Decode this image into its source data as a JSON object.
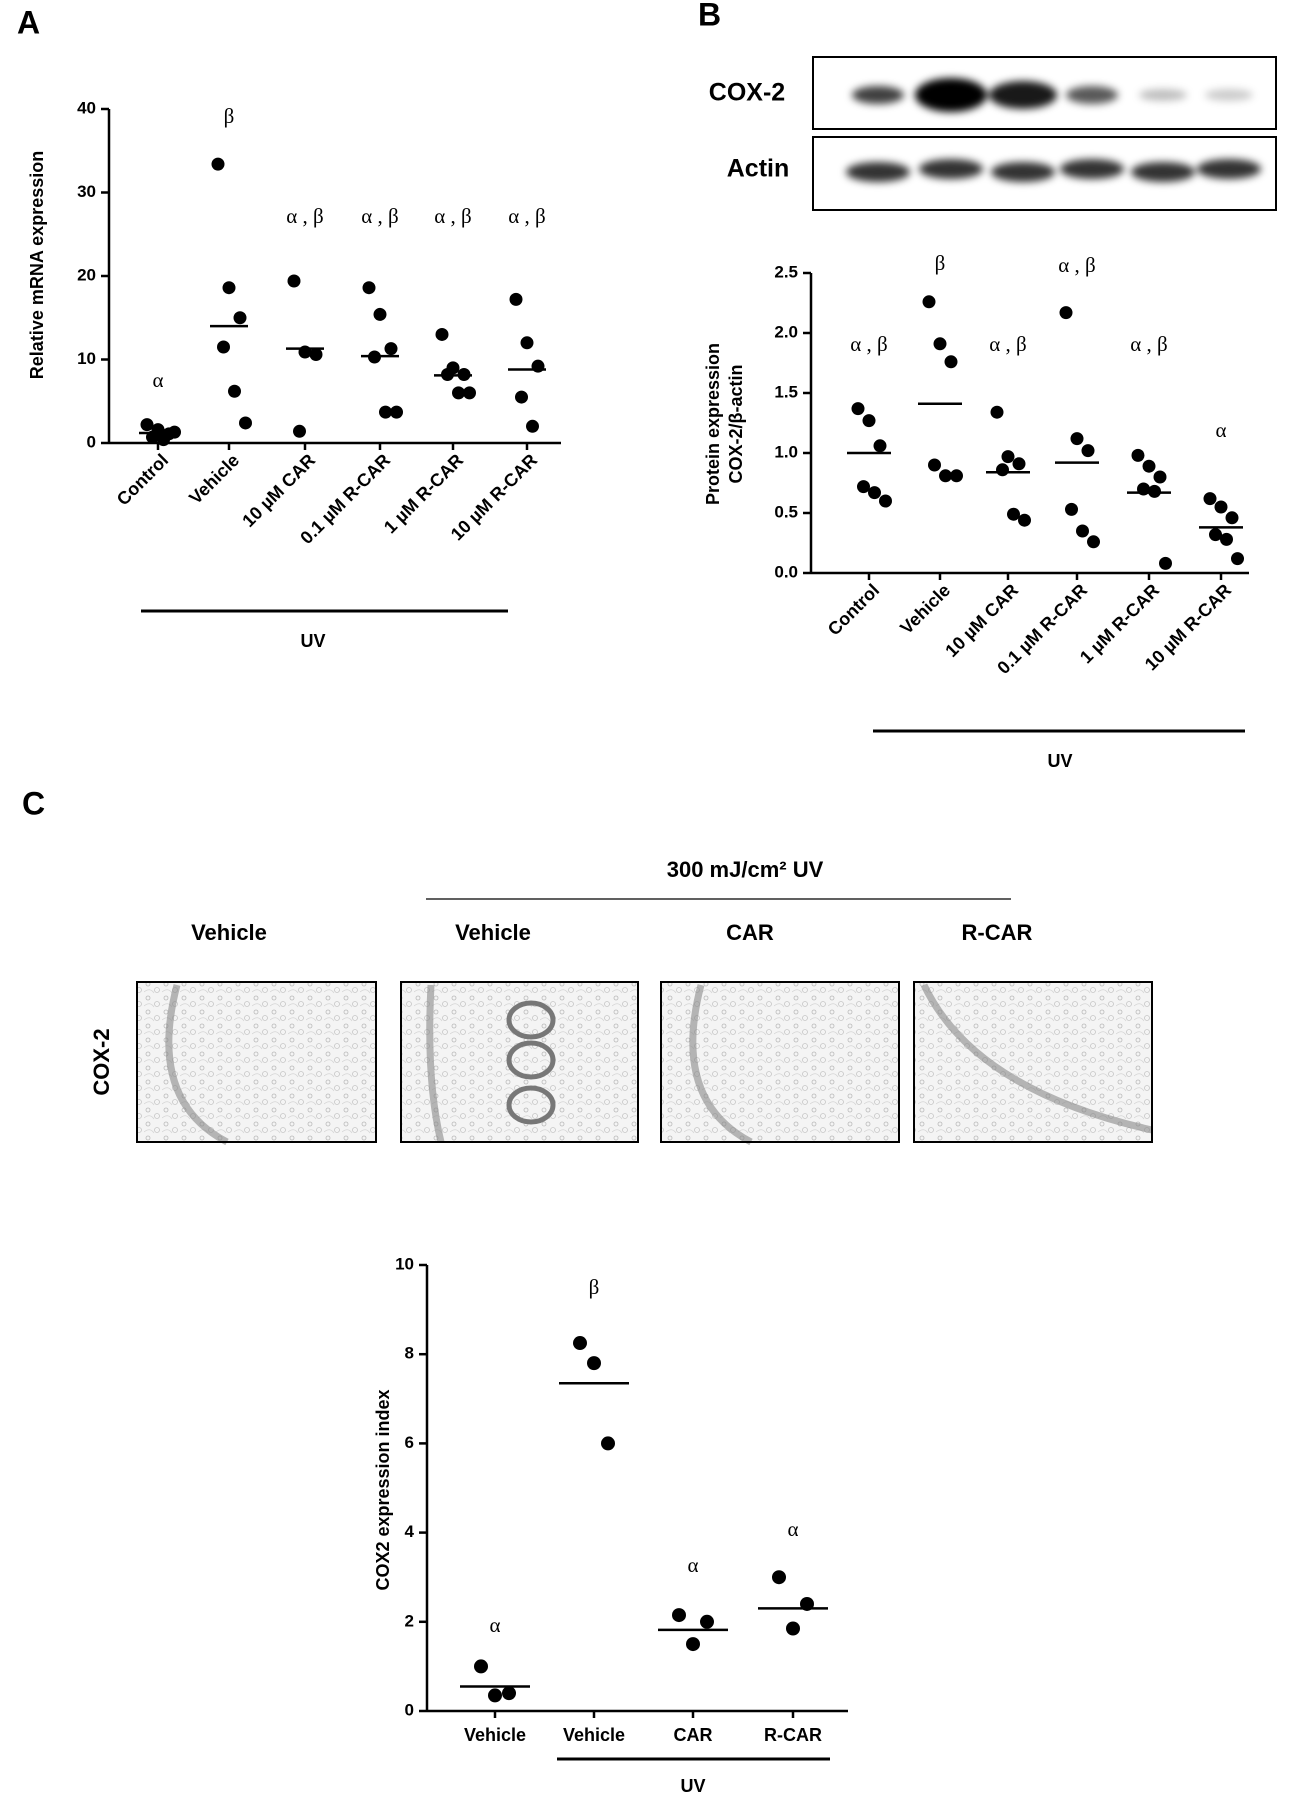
{
  "panels": {
    "a_label": "A",
    "b_label": "B",
    "c_label": "C"
  },
  "blot": {
    "rows": [
      "COX-2",
      "Actin"
    ]
  },
  "histology": {
    "header": "300 mJ/cm² UV",
    "columns": [
      "Vehicle",
      "Vehicle",
      "CAR",
      "R-CAR"
    ],
    "row_label": "COX-2"
  },
  "chart_data": [
    {
      "type": "dot",
      "ylabel": [
        "Relative mRNA expression"
      ],
      "categories": [
        "Control",
        "Vehicle",
        "10 µM CAR",
        "0.1 µM R-CAR",
        "1 µM R-CAR",
        "10 µM R-CAR"
      ],
      "points": [
        [
          2.2,
          1.6,
          1.1,
          0.7,
          0.4,
          1.3
        ],
        [
          33.4,
          18.6,
          15.0,
          11.5,
          6.2,
          2.4
        ],
        [
          19.4,
          10.9,
          10.6,
          1.4
        ],
        [
          18.6,
          15.4,
          11.3,
          10.3,
          3.7,
          3.7
        ],
        [
          13.0,
          9.0,
          8.2,
          8.2,
          6.0,
          6.0
        ],
        [
          17.2,
          12.0,
          9.2,
          5.5,
          2.0
        ]
      ],
      "means": [
        1.2,
        14.0,
        11.3,
        10.4,
        8.1,
        8.8
      ],
      "annotations": [
        "α",
        "β",
        "α , β",
        "α , β",
        "α , β",
        "α , β"
      ],
      "group_label": "UV",
      "color": "#000000",
      "ylim": [
        0,
        40
      ],
      "yticks": [
        0,
        10,
        20,
        30,
        40
      ]
    },
    {
      "type": "dot",
      "ylabel": [
        "Protein expression",
        "COX-2/β-actin"
      ],
      "categories": [
        "Control",
        "Vehicle",
        "10 µM CAR",
        "0.1 µM R-CAR",
        "1 µM R-CAR",
        "10 µM R-CAR"
      ],
      "points": [
        [
          1.37,
          1.27,
          1.06,
          0.72,
          0.67,
          0.6
        ],
        [
          2.26,
          1.91,
          1.76,
          0.9,
          0.81,
          0.81
        ],
        [
          1.34,
          0.97,
          0.91,
          0.86,
          0.49,
          0.44
        ],
        [
          2.17,
          1.12,
          1.02,
          0.53,
          0.35,
          0.26
        ],
        [
          0.98,
          0.89,
          0.8,
          0.7,
          0.68,
          0.08
        ],
        [
          0.62,
          0.55,
          0.46,
          0.32,
          0.28,
          0.12
        ]
      ],
      "means": [
        1.0,
        1.41,
        0.84,
        0.92,
        0.67,
        0.38
      ],
      "annotations": [
        "α , β",
        "β",
        "α , β",
        "α , β",
        "α , β",
        "α"
      ],
      "group_label": "UV",
      "color": "#000000",
      "ylim": [
        0,
        2.5
      ],
      "yticks": [
        {
          "value": 0,
          "label": "0.0"
        },
        0.5,
        {
          "value": 1,
          "label": "1.0"
        },
        1.5,
        {
          "value": 2,
          "label": "2.0"
        },
        2.5
      ]
    },
    {
      "type": "dot",
      "ylabel": [
        "COX2 expression index"
      ],
      "categories": [
        "Vehicle",
        "Vehicle",
        "CAR",
        "R-CAR"
      ],
      "points": [
        [
          1.0,
          0.35,
          0.4
        ],
        [
          8.25,
          7.8,
          6.0
        ],
        [
          2.15,
          1.5,
          2.0
        ],
        [
          3.0,
          1.85,
          2.4
        ]
      ],
      "means": [
        0.55,
        7.35,
        1.82,
        2.3
      ],
      "annotations": [
        "α",
        "β",
        "α",
        "α"
      ],
      "group_label": "UV",
      "color": "#000000",
      "ylim": [
        0,
        10
      ],
      "yticks": [
        0,
        2,
        4,
        6,
        8,
        10
      ]
    }
  ]
}
